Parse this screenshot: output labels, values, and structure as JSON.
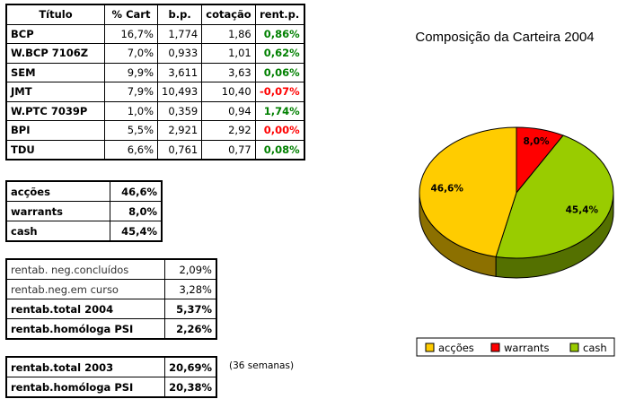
{
  "holdings": {
    "headers": [
      "Título",
      "% Cart",
      "b.p.",
      "cotação",
      "rent.p."
    ],
    "rows": [
      [
        "BCP",
        "16,7%",
        "1,774",
        "1,86",
        "0,86%"
      ],
      [
        "W.BCP 7106Z",
        "7,0%",
        "0,933",
        "1,01",
        "0,62%"
      ],
      [
        "SEM",
        "9,9%",
        "3,611",
        "3,63",
        "0,06%"
      ],
      [
        "JMT",
        "7,9%",
        "10,493",
        "10,40",
        "-0,07%"
      ],
      [
        "W.PTC 7039P",
        "1,0%",
        "0,359",
        "0,94",
        "1,74%"
      ],
      [
        "BPI",
        "5,5%",
        "2,921",
        "2,92",
        "0,00%"
      ],
      [
        "TDU",
        "6,6%",
        "0,761",
        "0,77",
        "0,08%"
      ]
    ],
    "rent_colors": [
      "#008000",
      "#008000",
      "#008000",
      "#ff0000",
      "#008000",
      "#ff0000",
      "#008000"
    ]
  },
  "allocation": [
    [
      "acções",
      "46,6%"
    ],
    [
      "warrants",
      "8,0%"
    ],
    [
      "cash",
      "45,4%"
    ]
  ],
  "returns": [
    [
      "rentab. neg.concluídos",
      "2,09%"
    ],
    [
      "rentab.neg.em curso",
      "3,28%"
    ],
    [
      "rentab.total 2004",
      "5,37%"
    ],
    [
      "rentab.homóloga PSI",
      "2,26%"
    ]
  ],
  "previous": [
    [
      "rentab.total 2003",
      "20,69%"
    ],
    [
      "rentab.homóloga PSI",
      "20,38%"
    ]
  ],
  "previous_note": "(36 semanas)",
  "chart_data": {
    "type": "pie",
    "title": "Composição da Carteira 2004",
    "categories": [
      "acções",
      "warrants",
      "cash"
    ],
    "values": [
      46.6,
      8.0,
      45.4
    ],
    "data_labels": [
      "46,6%",
      "8,0%",
      "45,4%"
    ],
    "colors": [
      "#ffcc00",
      "#ff0000",
      "#99cc00"
    ],
    "legend": "bottom",
    "three_d": true
  }
}
